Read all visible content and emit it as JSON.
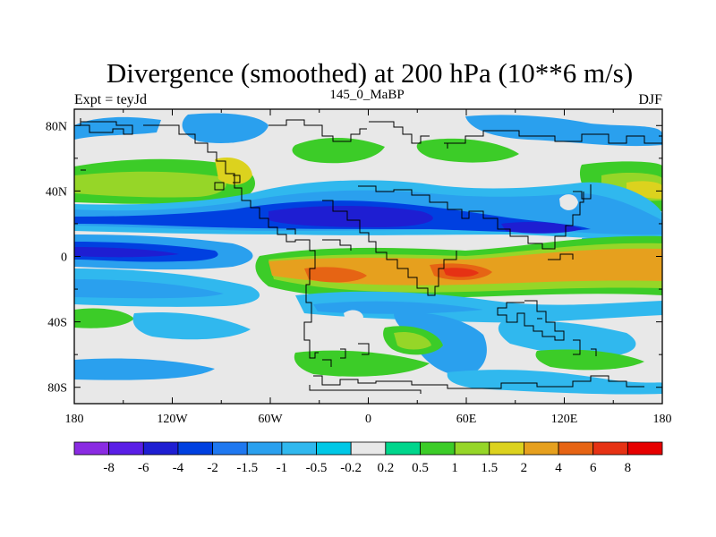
{
  "chart_data": {
    "type": "heatmap",
    "title": "Divergence (smoothed) at 200 hPa (10**6 m/s)",
    "subtitle_left": "Expt = teyJd",
    "subtitle_center": "145_0_MaBP",
    "subtitle_right": "DJF",
    "x_ticks": [
      "180",
      "120W",
      "60W",
      "0",
      "60E",
      "120E",
      "180"
    ],
    "y_ticks": [
      "80N",
      "40N",
      "0",
      "40S",
      "80S"
    ],
    "xlim": [
      -180,
      180
    ],
    "ylim": [
      -90,
      90
    ],
    "x_tick_values": [
      -180,
      -120,
      -60,
      0,
      60,
      120,
      180
    ],
    "y_tick_values": [
      80,
      40,
      0,
      -40,
      -80
    ],
    "colorbar_labels": [
      "-8",
      "-6",
      "-4",
      "-2",
      "-1.5",
      "-1",
      "-0.5",
      "-0.2",
      "0.2",
      "0.5",
      "1",
      "1.5",
      "2",
      "4",
      "6",
      "8"
    ],
    "colorbar_colors": [
      "#8a2be2",
      "#5a1ee6",
      "#1e1ed2",
      "#0040e0",
      "#1f78f0",
      "#2aa0ee",
      "#30b8ee",
      "#00c8e6",
      "#e8e8e8",
      "#00d68c",
      "#3ccc28",
      "#96d628",
      "#dcd21e",
      "#e6a01e",
      "#e66414",
      "#e63214",
      "#e60000"
    ],
    "field_description": "Divergent outflow bands: positive (orange/red) along equatorial band 0–30S, negative (blue) around 10–30N"
  }
}
